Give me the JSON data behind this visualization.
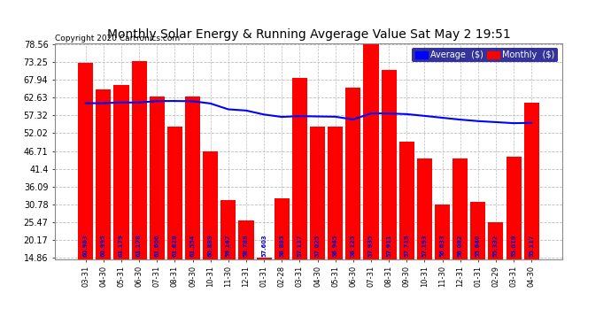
{
  "title": "Monthly Solar Energy & Running Avgerage Value Sat May 2 19:51",
  "copyright": "Copyright 2020 Cartronics.com",
  "categories": [
    "03-31",
    "04-30",
    "05-31",
    "06-30",
    "07-31",
    "08-31",
    "09-30",
    "10-31",
    "11-30",
    "12-31",
    "01-31",
    "02-28",
    "03-31",
    "04-30",
    "05-31",
    "06-30",
    "07-31",
    "08-31",
    "09-30",
    "10-31",
    "11-30",
    "12-31",
    "01-31",
    "02-29",
    "03-31",
    "04-30"
  ],
  "bar_values": [
    73.0,
    65.0,
    66.5,
    73.5,
    63.0,
    54.0,
    63.0,
    46.5,
    32.0,
    26.0,
    14.86,
    32.5,
    68.5,
    54.0,
    54.0,
    65.5,
    79.56,
    71.0,
    49.5,
    44.5,
    30.78,
    44.5,
    31.5,
    25.47,
    45.0,
    61.0
  ],
  "avg_values": [
    60.963,
    60.995,
    61.179,
    61.178,
    61.606,
    61.628,
    61.554,
    60.889,
    59.147,
    58.789,
    57.603,
    56.885,
    57.117,
    57.025,
    56.945,
    56.125,
    57.935,
    57.911,
    57.719,
    57.193,
    56.633,
    56.082,
    55.64,
    55.332,
    55.019,
    55.117
  ],
  "avg_labels": [
    "60.963",
    "60.995",
    "61.179",
    "61.178",
    "61.606",
    "61.628",
    "61.554",
    "60.889",
    "59.147",
    "58.789",
    "57.603",
    "56.885",
    "57.117",
    "57.025",
    "56.945",
    "56.125",
    "57.935",
    "57.911",
    "57.719",
    "57.193",
    "56.633",
    "56.082",
    "55.640",
    "55.332",
    "55.019",
    "55.117"
  ],
  "bar_color": "#ff0000",
  "avg_line_color": "#0000ff",
  "background_color": "#ffffff",
  "title_color": "#000000",
  "bar_label_color": "#0000cd",
  "grid_color": "#bbbbbb",
  "ylim_min": 14.86,
  "ylim_max": 78.56,
  "yticks": [
    14.86,
    20.17,
    25.47,
    30.78,
    36.09,
    41.4,
    46.71,
    52.02,
    57.32,
    62.63,
    67.94,
    73.25,
    78.56
  ],
  "legend_avg_label": "Average  ($)",
  "legend_monthly_label": "Monthly  ($)",
  "title_fontsize": 10,
  "copyright_fontsize": 6.5,
  "tick_fontsize": 7,
  "xtick_fontsize": 6
}
